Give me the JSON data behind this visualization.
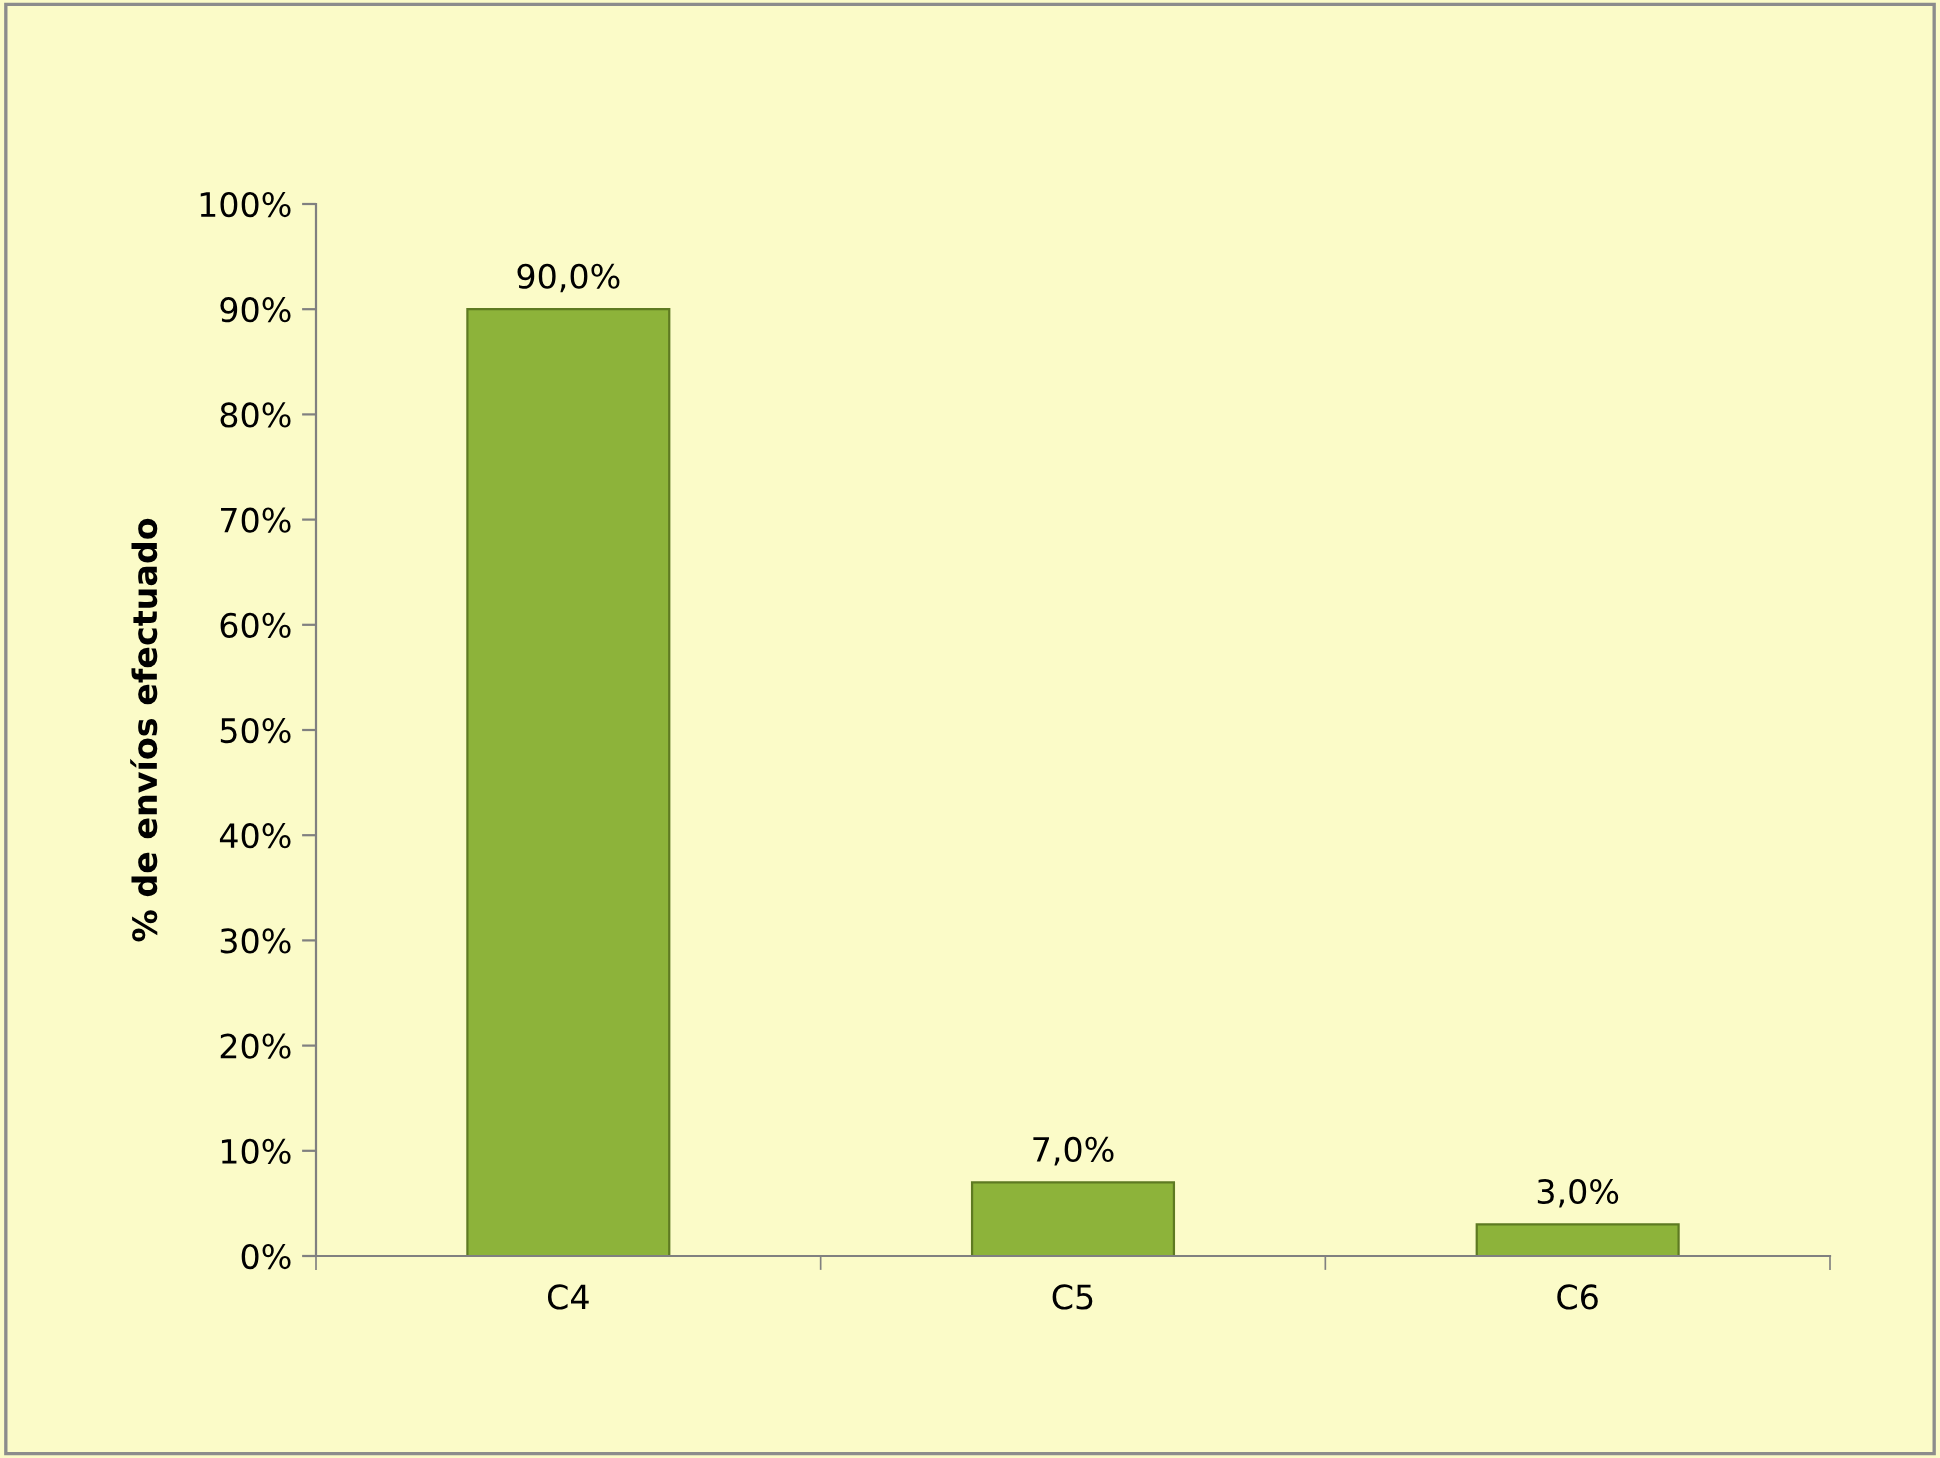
{
  "chart_data": {
    "type": "bar",
    "ylabel": "% de envíos efectuado",
    "categories": [
      "C4",
      "C5",
      "C6"
    ],
    "values": [
      90,
      7,
      3
    ],
    "value_labels": [
      "90,0%",
      "7,0%",
      "3,0%"
    ],
    "color": "#8db33a",
    "ylim": [
      0,
      100
    ],
    "yticks": [
      {
        "value": 0,
        "label": "0%"
      },
      {
        "value": 10,
        "label": "10%"
      },
      {
        "value": 20,
        "label": "20%"
      },
      {
        "value": 30,
        "label": "30%"
      },
      {
        "value": 40,
        "label": "40%"
      },
      {
        "value": 50,
        "label": "50%"
      },
      {
        "value": 60,
        "label": "60%"
      },
      {
        "value": 70,
        "label": "70%"
      },
      {
        "value": 80,
        "label": "80%"
      },
      {
        "value": 90,
        "label": "90%"
      },
      {
        "value": 100,
        "label": "100%"
      }
    ],
    "grid": false,
    "legend": false
  }
}
